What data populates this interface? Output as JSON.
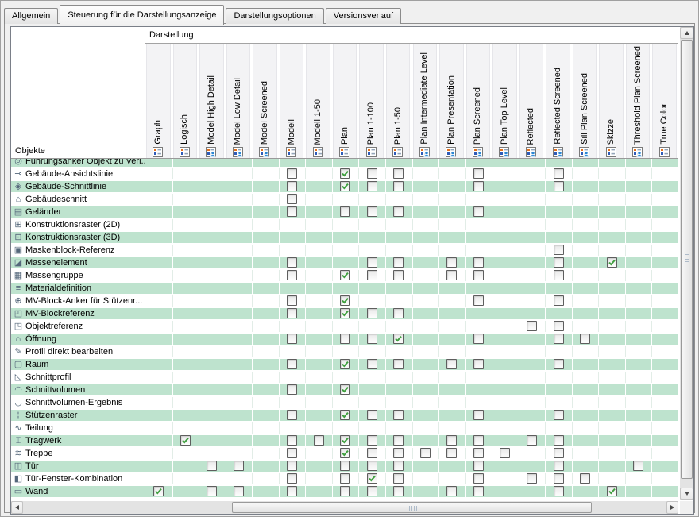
{
  "tabs": [
    {
      "label": "Allgemein",
      "active": false
    },
    {
      "label": "Steuerung für die Darstellungsanzeige",
      "active": true
    },
    {
      "label": "Darstellungsoptionen",
      "active": false
    },
    {
      "label": "Versionsverlauf",
      "active": false
    }
  ],
  "table": {
    "header_group_label": "Darstellung",
    "objects_label": "Objekte",
    "columns": [
      {
        "label": "Graph",
        "person": false
      },
      {
        "label": "Logisch",
        "person": false
      },
      {
        "label": "Model High Detail",
        "person": true
      },
      {
        "label": "Model Low Detail",
        "person": true
      },
      {
        "label": "Model Screened",
        "person": true
      },
      {
        "label": "Modell",
        "person": false
      },
      {
        "label": "Modell 1-50",
        "person": false
      },
      {
        "label": "Plan",
        "person": false
      },
      {
        "label": "Plan 1-100",
        "person": false
      },
      {
        "label": "Plan 1-50",
        "person": false
      },
      {
        "label": "Plan Intermediate Level",
        "person": true
      },
      {
        "label": "Plan Presentation",
        "person": true
      },
      {
        "label": "Plan Screened",
        "person": true
      },
      {
        "label": "Plan Top Level",
        "person": true
      },
      {
        "label": "Reflected",
        "person": true
      },
      {
        "label": "Reflected Screened",
        "person": true
      },
      {
        "label": "Sill Plan Screened",
        "person": true
      },
      {
        "label": "Skizze",
        "person": false
      },
      {
        "label": "Threshold Plan Screened",
        "person": true
      },
      {
        "label": "True Color",
        "person": false
      }
    ],
    "rows": [
      {
        "label": "Führungsanker Objekt zu Verl...",
        "glyph": "◎",
        "clipped": true,
        "cells": []
      },
      {
        "label": "Gebäude-Ansichtslinie",
        "glyph": "⊸",
        "cells": [
          [
            6,
            false
          ],
          [
            8,
            true
          ],
          [
            9,
            false
          ],
          [
            10,
            false
          ],
          [
            13,
            false
          ],
          [
            16,
            false
          ]
        ]
      },
      {
        "label": "Gebäude-Schnittlinie",
        "glyph": "◈",
        "cells": [
          [
            6,
            false
          ],
          [
            8,
            true
          ],
          [
            9,
            false
          ],
          [
            10,
            false
          ],
          [
            13,
            false
          ],
          [
            16,
            false
          ]
        ]
      },
      {
        "label": "Gebäudeschnitt",
        "glyph": "⌂",
        "cells": [
          [
            6,
            false
          ]
        ]
      },
      {
        "label": "Geländer",
        "glyph": "▤",
        "cells": [
          [
            6,
            false
          ],
          [
            8,
            false
          ],
          [
            9,
            false
          ],
          [
            10,
            false
          ],
          [
            13,
            false
          ]
        ]
      },
      {
        "label": "Konstruktionsraster (2D)",
        "glyph": "⊞",
        "cells": []
      },
      {
        "label": "Konstruktionsraster (3D)",
        "glyph": "⊡",
        "cells": []
      },
      {
        "label": "Maskenblock-Referenz",
        "glyph": "▣",
        "cells": [
          [
            16,
            false
          ]
        ]
      },
      {
        "label": "Massenelement",
        "glyph": "◪",
        "cells": [
          [
            6,
            false
          ],
          [
            9,
            false
          ],
          [
            10,
            false
          ],
          [
            12,
            false
          ],
          [
            13,
            false
          ],
          [
            16,
            false
          ],
          [
            18,
            true
          ]
        ]
      },
      {
        "label": "Massengruppe",
        "glyph": "▦",
        "cells": [
          [
            6,
            false
          ],
          [
            8,
            true
          ],
          [
            9,
            false
          ],
          [
            10,
            false
          ],
          [
            12,
            false
          ],
          [
            13,
            false
          ],
          [
            16,
            false
          ]
        ]
      },
      {
        "label": "Materialdefinition",
        "glyph": "≡",
        "cells": []
      },
      {
        "label": "MV-Block-Anker für Stützenr...",
        "glyph": "⊕",
        "cells": [
          [
            6,
            false
          ],
          [
            8,
            true
          ],
          [
            13,
            false
          ],
          [
            16,
            false
          ]
        ]
      },
      {
        "label": "MV-Blockreferenz",
        "glyph": "◰",
        "cells": [
          [
            6,
            false
          ],
          [
            8,
            true
          ],
          [
            9,
            false
          ],
          [
            10,
            false
          ]
        ]
      },
      {
        "label": "Objektreferenz",
        "glyph": "◳",
        "cells": [
          [
            15,
            false
          ],
          [
            16,
            false
          ]
        ]
      },
      {
        "label": "Öffnung",
        "glyph": "∩",
        "cells": [
          [
            6,
            false
          ],
          [
            8,
            false
          ],
          [
            9,
            false
          ],
          [
            10,
            true
          ],
          [
            13,
            false
          ],
          [
            16,
            false
          ],
          [
            17,
            false
          ]
        ]
      },
      {
        "label": "Profil direkt bearbeiten",
        "glyph": "✎",
        "cells": []
      },
      {
        "label": "Raum",
        "glyph": "▢",
        "cells": [
          [
            6,
            false
          ],
          [
            8,
            true
          ],
          [
            9,
            false
          ],
          [
            10,
            false
          ],
          [
            12,
            false
          ],
          [
            13,
            false
          ],
          [
            16,
            false
          ]
        ]
      },
      {
        "label": "Schnittprofil",
        "glyph": "◺",
        "cells": []
      },
      {
        "label": "Schnittvolumen",
        "glyph": "◠",
        "cells": [
          [
            6,
            false
          ],
          [
            8,
            true
          ]
        ]
      },
      {
        "label": "Schnittvolumen-Ergebnis",
        "glyph": "◡",
        "cells": []
      },
      {
        "label": "Stützenraster",
        "glyph": "⊹",
        "cells": [
          [
            6,
            false
          ],
          [
            8,
            true
          ],
          [
            9,
            false
          ],
          [
            10,
            false
          ],
          [
            13,
            false
          ],
          [
            16,
            false
          ]
        ]
      },
      {
        "label": "Teilung",
        "glyph": "∿",
        "cells": []
      },
      {
        "label": "Tragwerk",
        "glyph": "⌶",
        "cells": [
          [
            2,
            true
          ],
          [
            6,
            false
          ],
          [
            7,
            false
          ],
          [
            8,
            true
          ],
          [
            9,
            false
          ],
          [
            10,
            false
          ],
          [
            12,
            false
          ],
          [
            13,
            false
          ],
          [
            15,
            false
          ],
          [
            16,
            false
          ]
        ]
      },
      {
        "label": "Treppe",
        "glyph": "≋",
        "cells": [
          [
            6,
            false
          ],
          [
            8,
            true
          ],
          [
            9,
            false
          ],
          [
            10,
            false
          ],
          [
            11,
            false
          ],
          [
            12,
            false
          ],
          [
            13,
            false
          ],
          [
            14,
            false
          ],
          [
            16,
            false
          ]
        ]
      },
      {
        "label": "Tür",
        "glyph": "◫",
        "cells": [
          [
            3,
            false
          ],
          [
            4,
            false
          ],
          [
            6,
            false
          ],
          [
            8,
            false
          ],
          [
            9,
            false
          ],
          [
            10,
            false
          ],
          [
            13,
            false
          ],
          [
            16,
            false
          ],
          [
            19,
            false
          ]
        ]
      },
      {
        "label": "Tür-Fenster-Kombination",
        "glyph": "◧",
        "cells": [
          [
            6,
            false
          ],
          [
            8,
            false
          ],
          [
            9,
            true
          ],
          [
            10,
            false
          ],
          [
            13,
            false
          ],
          [
            15,
            false
          ],
          [
            16,
            false
          ],
          [
            17,
            false
          ]
        ]
      },
      {
        "label": "Wand",
        "glyph": "▭",
        "cells": [
          [
            1,
            true
          ],
          [
            3,
            false
          ],
          [
            4,
            false
          ],
          [
            6,
            false
          ],
          [
            8,
            false
          ],
          [
            9,
            false
          ],
          [
            10,
            false
          ],
          [
            12,
            false
          ],
          [
            13,
            false
          ],
          [
            16,
            false
          ],
          [
            18,
            true
          ]
        ]
      }
    ]
  },
  "colors": {
    "row_alt_green": "#bee3ce",
    "checkmark_green": "#3f9f3f",
    "header_icon_orange": "#e2711d",
    "header_icon_blue": "#2b86d4"
  }
}
